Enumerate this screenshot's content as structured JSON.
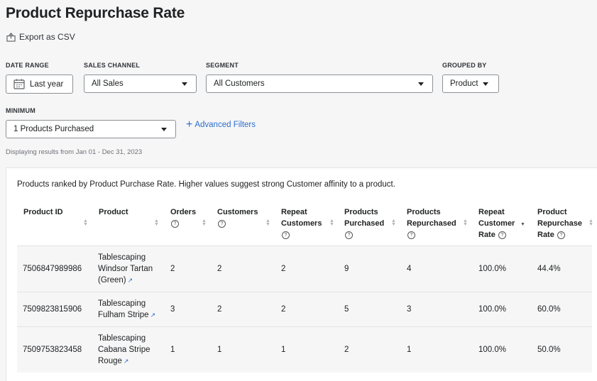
{
  "page": {
    "title": "Product Repurchase Rate",
    "export_label": "Export as CSV"
  },
  "filters": {
    "date_range": {
      "label": "DATE RANGE",
      "value": "Last year"
    },
    "sales_channel": {
      "label": "SALES CHANNEL",
      "value": "All Sales"
    },
    "segment": {
      "label": "SEGMENT",
      "value": "All Customers"
    },
    "grouped_by": {
      "label": "GROUPED BY",
      "value": "Product"
    },
    "minimum": {
      "label": "MINIMUM",
      "value": "1 Products Purchased"
    },
    "advanced_label": "Advanced Filters",
    "range_text": "Displaying results from Jan 01 - Dec 31, 2023"
  },
  "report": {
    "description": "Products ranked by Product Purchase Rate. Higher values suggest strong Customer affinity to a product.",
    "headers": {
      "product_id": "Product ID",
      "product": "Product",
      "orders": "Orders",
      "customers": "Customers",
      "repeat_customers_1": "Repeat",
      "repeat_customers_2": "Customers",
      "products_purchased_1": "Products",
      "products_purchased_2": "Purchased",
      "products_repurchased_1": "Products",
      "products_repurchased_2": "Repurchased",
      "repeat_rate_1": "Repeat",
      "repeat_rate_2": "Customer",
      "repeat_rate_3": "Rate",
      "repurchase_rate_1": "Product",
      "repurchase_rate_2": "Repurchase",
      "repurchase_rate_3": "Rate"
    },
    "rows": [
      {
        "id": "7506847989986",
        "name_1": "Tablescaping",
        "name_2": "Windsor Tartan",
        "name_3": "(Green)",
        "orders": "2",
        "customers": "2",
        "repeat_customers": "2",
        "purchased": "9",
        "repurchased": "4",
        "repeat_rate": "100.0%",
        "repurchase_rate": "44.4%"
      },
      {
        "id": "7509823815906",
        "name_1": "Tablescaping",
        "name_2": "Fulham Stripe",
        "name_3": "",
        "orders": "3",
        "customers": "2",
        "repeat_customers": "2",
        "purchased": "5",
        "repurchased": "3",
        "repeat_rate": "100.0%",
        "repurchase_rate": "60.0%"
      },
      {
        "id": "7509753823458",
        "name_1": "Tablescaping",
        "name_2": "Cabana Stripe",
        "name_3": "Rouge",
        "orders": "1",
        "customers": "1",
        "repeat_customers": "1",
        "purchased": "2",
        "repurchased": "1",
        "repeat_rate": "100.0%",
        "repurchase_rate": "50.0%"
      }
    ]
  }
}
